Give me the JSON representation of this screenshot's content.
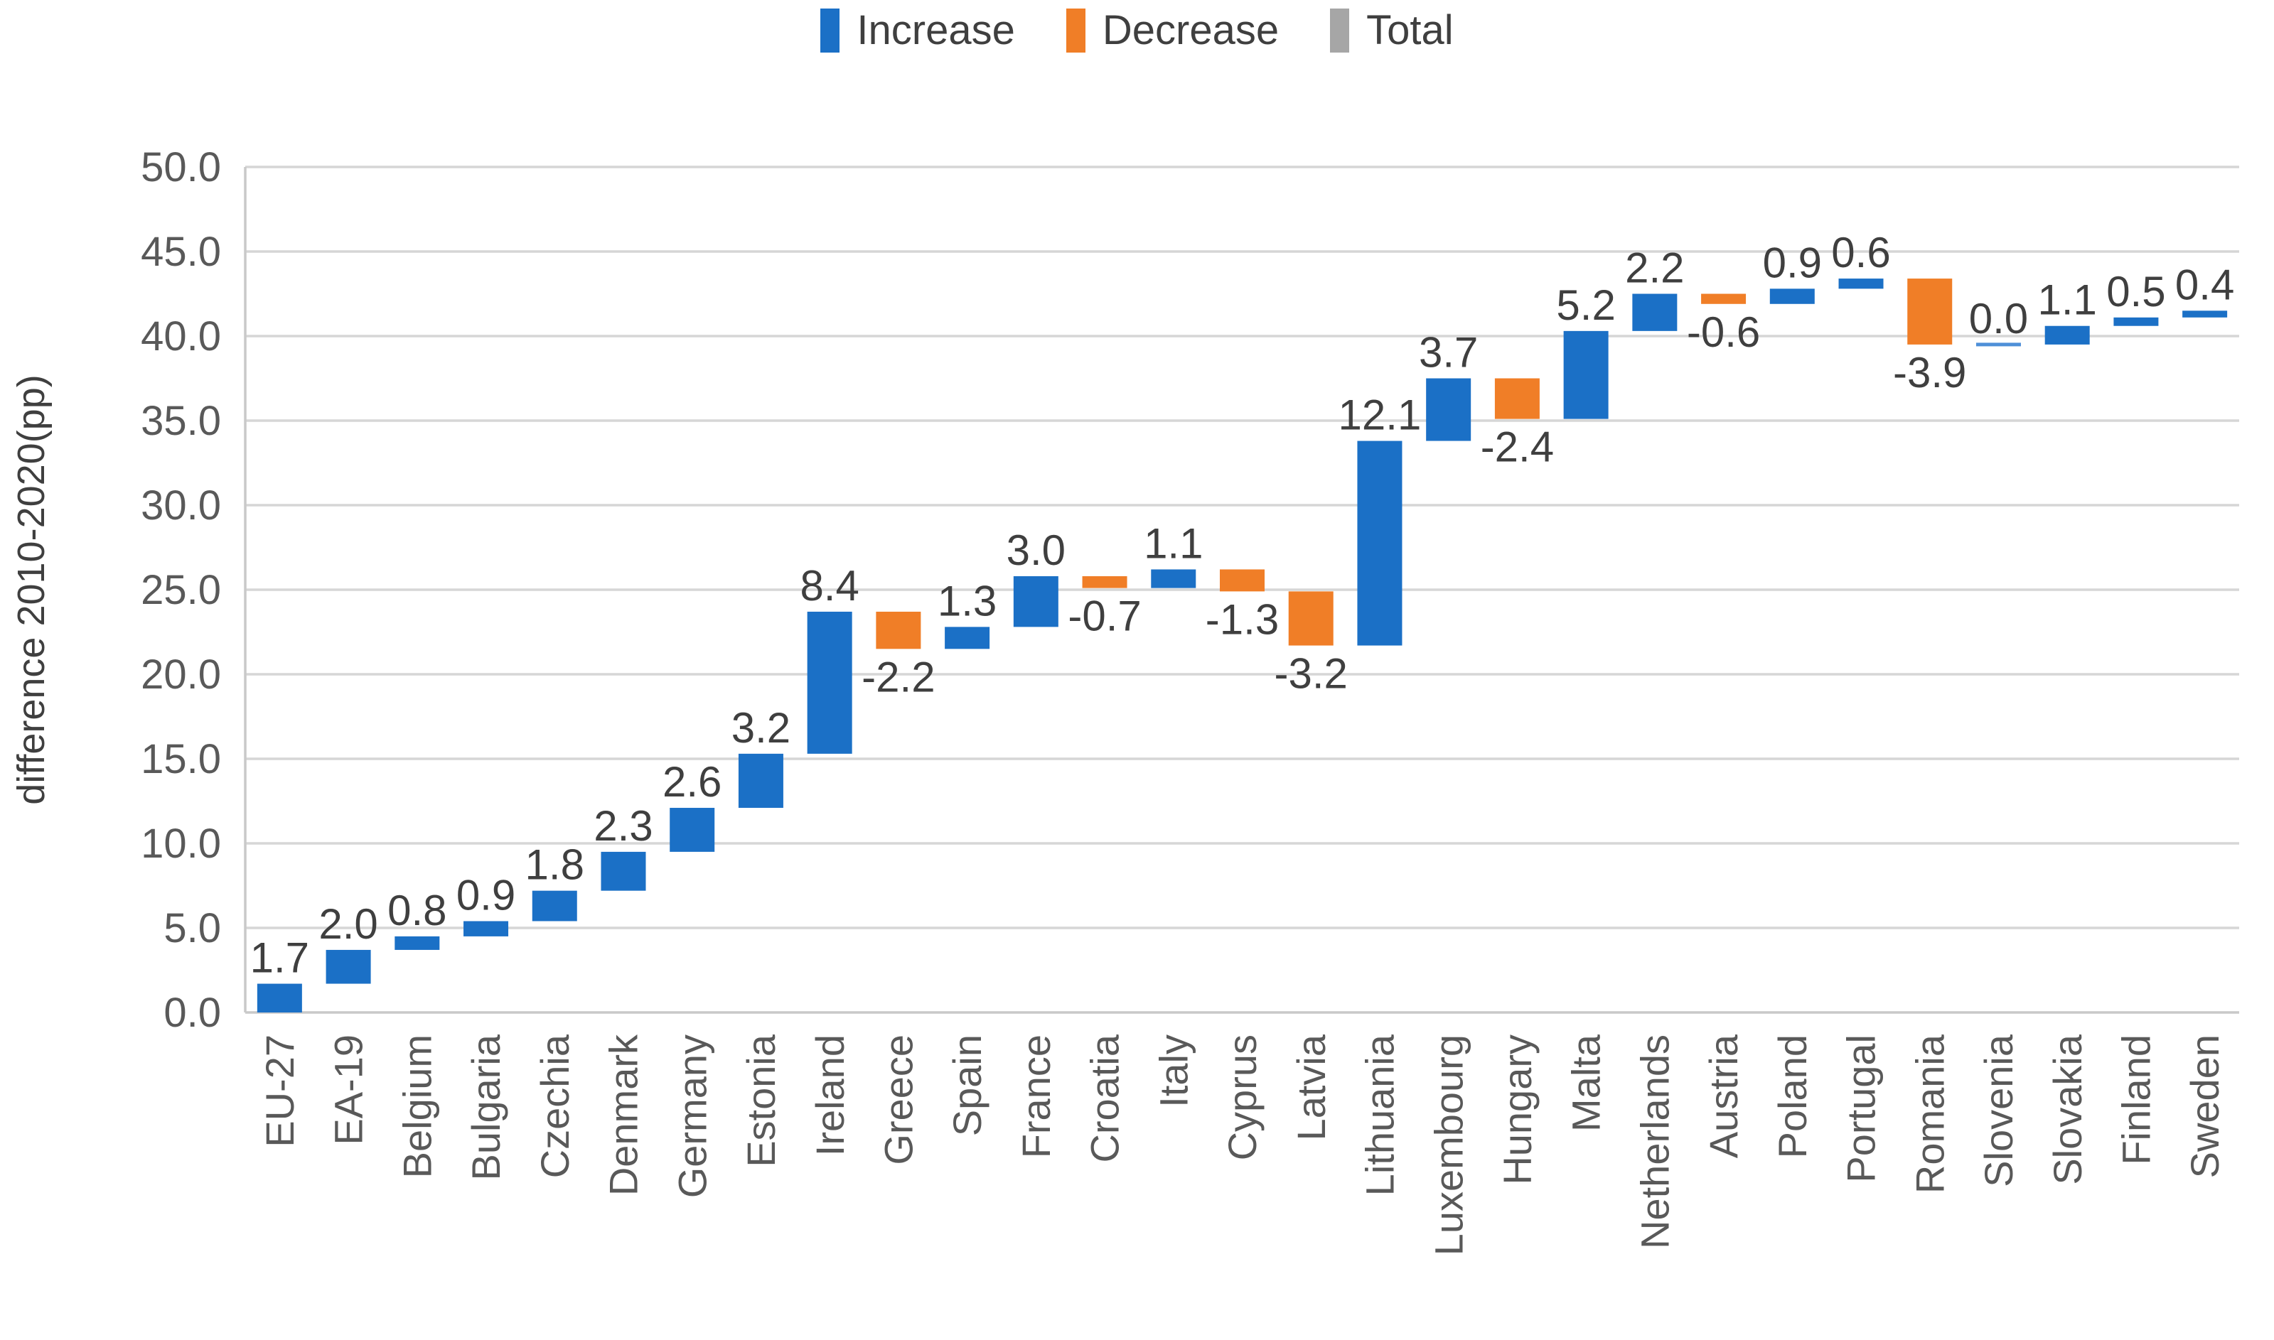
{
  "legend": {
    "items": [
      {
        "label": "Increase",
        "color": "#1b70c6"
      },
      {
        "label": "Decrease",
        "color": "#f07e27"
      },
      {
        "label": "Total",
        "color": "#a6a6a6"
      }
    ]
  },
  "chart_data": {
    "type": "bar",
    "subtype": "waterfall",
    "title": "",
    "xlabel": "",
    "ylabel": "difference 2010-2020(pp)",
    "ylim": [
      0,
      50
    ],
    "yticks": [
      0,
      5,
      10,
      15,
      20,
      25,
      30,
      35,
      40,
      45,
      50
    ],
    "ytick_labels": [
      "0.0",
      "5.0",
      "10.0",
      "15.0",
      "20.0",
      "25.0",
      "30.0",
      "35.0",
      "40.0",
      "45.0",
      "50.0"
    ],
    "grid": true,
    "legend_position": "top center",
    "categories": [
      "EU-27",
      "EA-19",
      "Belgium",
      "Bulgaria",
      "Czechia",
      "Denmark",
      "Germany",
      "Estonia",
      "Ireland",
      "Greece",
      "Spain",
      "France",
      "Croatia",
      "Italy",
      "Cyprus",
      "Latvia",
      "Lithuania",
      "Luxembourg",
      "Hungary",
      "Malta",
      "Netherlands",
      "Austria",
      "Poland",
      "Portugal",
      "Romania",
      "Slovenia",
      "Slovakia",
      "Finland",
      "Sweden"
    ],
    "values": [
      1.7,
      2.0,
      0.8,
      0.9,
      1.8,
      2.3,
      2.6,
      3.2,
      8.4,
      -2.2,
      1.3,
      3.0,
      -0.7,
      1.1,
      -1.3,
      -3.2,
      12.1,
      3.7,
      -2.4,
      5.2,
      2.2,
      -0.6,
      0.9,
      0.6,
      -3.9,
      0.0,
      1.1,
      0.5,
      0.4
    ],
    "value_labels": [
      "1.7",
      "2.0",
      "0.8",
      "0.9",
      "1.8",
      "2.3",
      "2.6",
      "3.2",
      "8.4",
      "-2.2",
      "1.3",
      "3.0",
      "-0.7",
      "1.1",
      "-1.3",
      "-3.2",
      "12.1",
      "3.7",
      "-2.4",
      "5.2",
      "2.2",
      "-0.6",
      "0.9",
      "0.6",
      "-3.9",
      "0.0",
      "1.1",
      "0.5",
      "0.4"
    ],
    "cumulative_start": [
      0.0,
      1.7,
      3.7,
      4.5,
      5.4,
      7.2,
      9.5,
      12.1,
      15.3,
      23.7,
      21.5,
      22.8,
      25.8,
      25.1,
      26.2,
      24.9,
      21.7,
      33.8,
      37.5,
      35.1,
      40.3,
      42.5,
      41.9,
      42.8,
      43.4,
      39.5,
      39.5,
      40.6,
      41.1
    ],
    "colors": {
      "increase": "#1b70c6",
      "decrease": "#f07e27",
      "total": "#a6a6a6",
      "zero_bar": "#4e8fd8",
      "gridline": "#d6d6d6",
      "axis_line": "#c9c9c9"
    }
  }
}
